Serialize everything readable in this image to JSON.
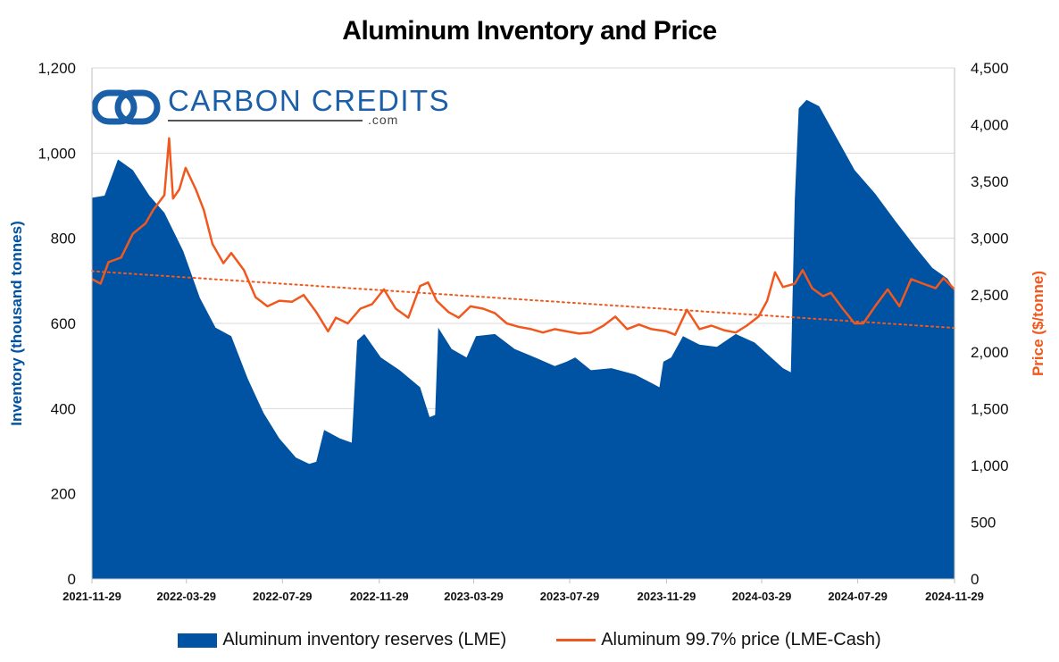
{
  "title": "Aluminum Inventory and Price",
  "logo": {
    "name": "CARBON CREDITS",
    "suffix": ".com"
  },
  "legend": {
    "inventory": "Aluminum inventory reserves (LME)",
    "price": "Aluminum 99.7% price (LME-Cash)"
  },
  "colors": {
    "inventory": "#0052a3",
    "price": "#f0581e",
    "trend": "#f0581e"
  },
  "chart_data": {
    "type": "area",
    "title": "Aluminum Inventory and Price",
    "x_ticks": [
      "2021-11-29",
      "2022-03-29",
      "2022-07-29",
      "2022-11-29",
      "2023-03-29",
      "2023-07-29",
      "2023-11-29",
      "2024-03-29",
      "2024-07-29",
      "2024-11-29"
    ],
    "y_left": {
      "label": "Inventory (thousand tonnes)",
      "range": [
        0,
        1200
      ],
      "ticks": [
        "0",
        "200",
        "400",
        "600",
        "800",
        "1,000",
        "1,200"
      ]
    },
    "y_right": {
      "label": "Price ($/tonne)",
      "range": [
        0,
        4500
      ],
      "ticks": [
        "0",
        "500",
        "1,000",
        "1,500",
        "2,000",
        "2,500",
        "3,000",
        "3,500",
        "4,000",
        "4,500"
      ]
    },
    "grid": true,
    "legend_position": "bottom",
    "series": [
      {
        "name": "Aluminum inventory reserves (LME)",
        "type": "area",
        "axis": "left",
        "points": [
          [
            "2021-11-29",
            895
          ],
          [
            "2021-12-15",
            900
          ],
          [
            "2022-01-01",
            985
          ],
          [
            "2022-01-20",
            960
          ],
          [
            "2022-02-10",
            900
          ],
          [
            "2022-03-01",
            860
          ],
          [
            "2022-03-25",
            770
          ],
          [
            "2022-04-15",
            660
          ],
          [
            "2022-05-05",
            590
          ],
          [
            "2022-05-25",
            570
          ],
          [
            "2022-06-15",
            470
          ],
          [
            "2022-07-05",
            390
          ],
          [
            "2022-07-25",
            330
          ],
          [
            "2022-08-15",
            285
          ],
          [
            "2022-09-01",
            270
          ],
          [
            "2022-09-10",
            275
          ],
          [
            "2022-09-20",
            350
          ],
          [
            "2022-10-10",
            330
          ],
          [
            "2022-10-25",
            320
          ],
          [
            "2022-11-01",
            560
          ],
          [
            "2022-11-10",
            575
          ],
          [
            "2022-12-01",
            520
          ],
          [
            "2022-12-25",
            490
          ],
          [
            "2023-01-20",
            450
          ],
          [
            "2023-02-01",
            380
          ],
          [
            "2023-02-08",
            385
          ],
          [
            "2023-02-12",
            590
          ],
          [
            "2023-03-01",
            540
          ],
          [
            "2023-03-20",
            520
          ],
          [
            "2023-04-01",
            570
          ],
          [
            "2023-04-25",
            575
          ],
          [
            "2023-05-20",
            540
          ],
          [
            "2023-06-15",
            520
          ],
          [
            "2023-07-10",
            500
          ],
          [
            "2023-07-25",
            510
          ],
          [
            "2023-08-05",
            520
          ],
          [
            "2023-08-25",
            490
          ],
          [
            "2023-09-20",
            495
          ],
          [
            "2023-10-20",
            480
          ],
          [
            "2023-11-10",
            460
          ],
          [
            "2023-11-20",
            450
          ],
          [
            "2023-11-25",
            510
          ],
          [
            "2023-12-05",
            520
          ],
          [
            "2023-12-20",
            570
          ],
          [
            "2024-01-10",
            550
          ],
          [
            "2024-02-01",
            545
          ],
          [
            "2024-02-25",
            575
          ],
          [
            "2024-03-20",
            555
          ],
          [
            "2024-04-10",
            520
          ],
          [
            "2024-04-25",
            495
          ],
          [
            "2024-05-05",
            485
          ],
          [
            "2024-05-10",
            890
          ],
          [
            "2024-05-15",
            1105
          ],
          [
            "2024-05-25",
            1125
          ],
          [
            "2024-06-10",
            1110
          ],
          [
            "2024-07-01",
            1040
          ],
          [
            "2024-07-25",
            960
          ],
          [
            "2024-08-20",
            905
          ],
          [
            "2024-09-15",
            840
          ],
          [
            "2024-10-10",
            780
          ],
          [
            "2024-11-01",
            730
          ],
          [
            "2024-11-20",
            705
          ],
          [
            "2024-11-29",
            680
          ]
        ]
      },
      {
        "name": "Aluminum 99.7% price (LME-Cash)",
        "type": "line",
        "axis": "right",
        "points": [
          [
            "2021-11-29",
            2640
          ],
          [
            "2021-12-10",
            2600
          ],
          [
            "2021-12-20",
            2790
          ],
          [
            "2022-01-05",
            2830
          ],
          [
            "2022-01-20",
            3040
          ],
          [
            "2022-02-05",
            3130
          ],
          [
            "2022-02-15",
            3250
          ],
          [
            "2022-03-01",
            3380
          ],
          [
            "2022-03-07",
            3880
          ],
          [
            "2022-03-12",
            3350
          ],
          [
            "2022-03-20",
            3430
          ],
          [
            "2022-03-28",
            3620
          ],
          [
            "2022-04-10",
            3430
          ],
          [
            "2022-04-20",
            3250
          ],
          [
            "2022-05-01",
            2950
          ],
          [
            "2022-05-15",
            2780
          ],
          [
            "2022-05-25",
            2870
          ],
          [
            "2022-06-10",
            2720
          ],
          [
            "2022-06-25",
            2480
          ],
          [
            "2022-07-10",
            2400
          ],
          [
            "2022-07-25",
            2450
          ],
          [
            "2022-08-10",
            2440
          ],
          [
            "2022-08-25",
            2500
          ],
          [
            "2022-09-10",
            2350
          ],
          [
            "2022-09-25",
            2180
          ],
          [
            "2022-10-05",
            2300
          ],
          [
            "2022-10-20",
            2250
          ],
          [
            "2022-11-05",
            2380
          ],
          [
            "2022-11-20",
            2420
          ],
          [
            "2022-12-05",
            2550
          ],
          [
            "2022-12-20",
            2380
          ],
          [
            "2023-01-05",
            2300
          ],
          [
            "2023-01-20",
            2580
          ],
          [
            "2023-01-30",
            2610
          ],
          [
            "2023-02-10",
            2450
          ],
          [
            "2023-02-25",
            2350
          ],
          [
            "2023-03-10",
            2300
          ],
          [
            "2023-03-25",
            2400
          ],
          [
            "2023-04-10",
            2380
          ],
          [
            "2023-04-25",
            2340
          ],
          [
            "2023-05-10",
            2250
          ],
          [
            "2023-05-25",
            2220
          ],
          [
            "2023-06-10",
            2200
          ],
          [
            "2023-06-25",
            2170
          ],
          [
            "2023-07-10",
            2200
          ],
          [
            "2023-07-25",
            2180
          ],
          [
            "2023-08-10",
            2160
          ],
          [
            "2023-08-25",
            2170
          ],
          [
            "2023-09-10",
            2230
          ],
          [
            "2023-09-25",
            2310
          ],
          [
            "2023-10-10",
            2200
          ],
          [
            "2023-10-25",
            2240
          ],
          [
            "2023-11-10",
            2200
          ],
          [
            "2023-11-29",
            2180
          ],
          [
            "2023-12-10",
            2150
          ],
          [
            "2023-12-25",
            2370
          ],
          [
            "2024-01-10",
            2200
          ],
          [
            "2024-01-25",
            2230
          ],
          [
            "2024-02-10",
            2190
          ],
          [
            "2024-02-25",
            2170
          ],
          [
            "2024-03-10",
            2230
          ],
          [
            "2024-03-25",
            2310
          ],
          [
            "2024-04-05",
            2450
          ],
          [
            "2024-04-15",
            2700
          ],
          [
            "2024-04-25",
            2570
          ],
          [
            "2024-05-10",
            2600
          ],
          [
            "2024-05-20",
            2720
          ],
          [
            "2024-06-01",
            2560
          ],
          [
            "2024-06-15",
            2490
          ],
          [
            "2024-06-25",
            2520
          ],
          [
            "2024-07-10",
            2380
          ],
          [
            "2024-07-25",
            2250
          ],
          [
            "2024-08-05",
            2250
          ],
          [
            "2024-08-20",
            2400
          ],
          [
            "2024-09-05",
            2550
          ],
          [
            "2024-09-20",
            2400
          ],
          [
            "2024-10-05",
            2640
          ],
          [
            "2024-10-20",
            2600
          ],
          [
            "2024-11-05",
            2560
          ],
          [
            "2024-11-15",
            2650
          ],
          [
            "2024-11-29",
            2550
          ]
        ]
      },
      {
        "type": "trendline",
        "style": "dotted",
        "axis": "right",
        "points": [
          [
            "2021-11-29",
            2710
          ],
          [
            "2024-11-29",
            2210
          ]
        ]
      }
    ]
  }
}
